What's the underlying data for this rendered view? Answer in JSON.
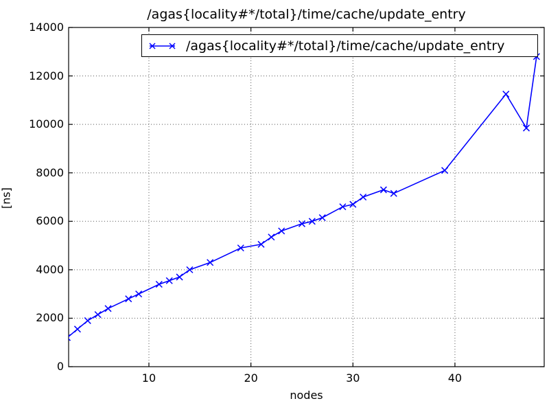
{
  "figure": {
    "background_color": "#ffffff",
    "text_color": "#000000",
    "grid_color": "#555555",
    "axis_color": "#000000"
  },
  "chart_data": {
    "type": "line",
    "title": "/agas{locality#*/total}/time/cache/update_entry",
    "xlabel": "nodes",
    "ylabel": "[ns]",
    "grid": true,
    "grid_style": "dotted",
    "legend_position": "upper right inside plot",
    "xlim": [
      2.13,
      48.75
    ],
    "ylim": [
      0,
      14000
    ],
    "xticks": [
      10,
      20,
      30,
      40
    ],
    "yticks": [
      0,
      2000,
      4000,
      6000,
      8000,
      10000,
      12000,
      14000
    ],
    "series": [
      {
        "name": "/agas{locality#*/total}/time/cache/update_entry",
        "color": "#0000ff",
        "marker": "x",
        "x": [
          2,
          3,
          4,
          5,
          6,
          8,
          9,
          11,
          12,
          13,
          14,
          16,
          19,
          21,
          22,
          23,
          25,
          26,
          27,
          29,
          30,
          31,
          33,
          34,
          39,
          45,
          47,
          48
        ],
        "y": [
          1200,
          1550,
          1900,
          2150,
          2400,
          2800,
          3000,
          3400,
          3550,
          3700,
          4000,
          4300,
          4900,
          5050,
          5350,
          5600,
          5900,
          6000,
          6150,
          6600,
          6700,
          7000,
          7300,
          7150,
          8100,
          11250,
          9850,
          12800
        ]
      }
    ]
  }
}
